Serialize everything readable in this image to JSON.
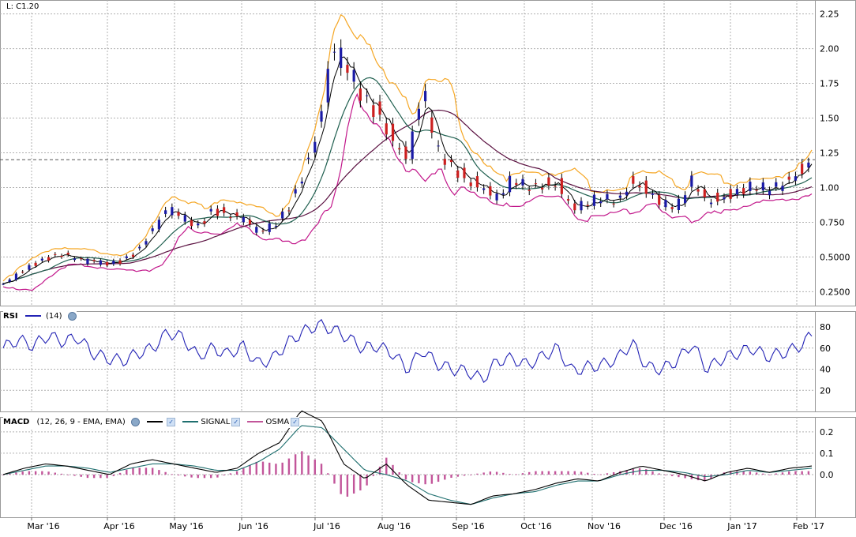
{
  "last_label": "L: C1.20",
  "x_ticks": [
    "Mar '16",
    "Apr '16",
    "May '16",
    "Jun '16",
    "Jul '16",
    "Aug '16",
    "Sep '16",
    "Oct '16",
    "Nov '16",
    "Dec '16",
    "Jan '17",
    "Feb '17"
  ],
  "price_ticks": [
    "2.25",
    "2.00",
    "1.75",
    "1.50",
    "1.25",
    "1.00",
    "0.750",
    "0.5000",
    "0.2500"
  ],
  "rsi_ticks": [
    "80",
    "60",
    "40",
    "20"
  ],
  "macd_ticks": [
    "0.2",
    "0.1",
    "0.0"
  ],
  "rsi_header": {
    "name": "RSI",
    "param": "(14)"
  },
  "macd_header": {
    "name": "MACD",
    "param": "(12, 26, 9 - EMA, EMA)",
    "signal": "SIGNAL",
    "osma": "OSMA"
  },
  "colors": {
    "up": "#1a1aa6",
    "down": "#cc1f1f",
    "bollinger_upper": "#f5a623",
    "bollinger_lower": "#c2188b",
    "ma_fast": "#000000",
    "ma_mid": "#1f5f4f",
    "ma_slow": "#5a1040",
    "rsi": "#2323b5",
    "macd": "#000000",
    "signal": "#1f6f6f",
    "osma": "#c2559a",
    "grid": "#b0b0b0"
  },
  "chart_data": [
    {
      "type": "candlestick",
      "title": "",
      "last_close": 1.2,
      "ylim": [
        0.15,
        2.35
      ],
      "x_months": [
        "Mar '16",
        "Apr '16",
        "May '16",
        "Jun '16",
        "Jul '16",
        "Aug '16",
        "Sep '16",
        "Oct '16",
        "Nov '16",
        "Dec '16",
        "Jan '17",
        "Feb '17"
      ],
      "close_weekly": [
        0.3,
        0.38,
        0.45,
        0.5,
        0.52,
        0.48,
        0.47,
        0.45,
        0.48,
        0.55,
        0.7,
        0.85,
        0.78,
        0.72,
        0.85,
        0.8,
        0.78,
        0.68,
        0.72,
        0.85,
        1.1,
        1.4,
        2.0,
        1.85,
        1.65,
        1.55,
        1.35,
        1.2,
        1.7,
        1.25,
        1.15,
        1.05,
        1.0,
        0.92,
        1.05,
        1.0,
        1.02,
        1.03,
        0.85,
        0.88,
        0.92,
        0.9,
        1.05,
        0.98,
        0.88,
        0.85,
        1.05,
        0.9,
        0.93,
        0.97,
        1.0,
        0.98,
        1.02,
        1.1,
        1.2
      ],
      "indicators": [
        "Bollinger upper",
        "Bollinger lower",
        "MA fast",
        "MA mid",
        "MA slow"
      ]
    },
    {
      "type": "line",
      "title": "RSI (14)",
      "ylim": [
        0,
        95
      ],
      "values": [
        60,
        68,
        62,
        72,
        66,
        70,
        55,
        50,
        48,
        55,
        60,
        75,
        70,
        52,
        60,
        54,
        62,
        45,
        50,
        65,
        75,
        82,
        78,
        70,
        60,
        62,
        55,
        40,
        58,
        45,
        40,
        38,
        30,
        48,
        50,
        44,
        52,
        60,
        38,
        42,
        44,
        50,
        65,
        42,
        40,
        48,
        64,
        40,
        50,
        55,
        60,
        52,
        55,
        60,
        72
      ]
    },
    {
      "type": "bar+line",
      "title": "MACD (12, 26, 9 - EMA, EMA)",
      "ylim": [
        -0.2,
        0.27
      ],
      "macd": [
        0.0,
        0.03,
        0.05,
        0.04,
        0.02,
        0.0,
        0.05,
        0.07,
        0.05,
        0.03,
        0.01,
        0.03,
        0.1,
        0.15,
        0.3,
        0.25,
        0.05,
        -0.02,
        0.05,
        -0.05,
        -0.12,
        -0.13,
        -0.14,
        -0.1,
        -0.09,
        -0.07,
        -0.04,
        -0.02,
        -0.03,
        0.01,
        0.04,
        0.02,
        0.0,
        -0.03,
        0.01,
        0.03,
        0.01,
        0.03,
        0.04
      ],
      "signal": [
        0.0,
        0.02,
        0.04,
        0.04,
        0.03,
        0.01,
        0.03,
        0.05,
        0.05,
        0.04,
        0.02,
        0.02,
        0.06,
        0.12,
        0.23,
        0.22,
        0.12,
        0.02,
        0.0,
        -0.03,
        -0.09,
        -0.12,
        -0.14,
        -0.11,
        -0.09,
        -0.08,
        -0.05,
        -0.03,
        -0.03,
        0.0,
        0.02,
        0.02,
        0.01,
        -0.01,
        0.0,
        0.02,
        0.01,
        0.02,
        0.03
      ]
    }
  ]
}
